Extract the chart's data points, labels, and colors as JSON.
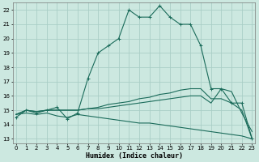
{
  "xlabel": "Humidex (Indice chaleur)",
  "background_color": "#cce8e0",
  "grid_color": "#aacec6",
  "line_color": "#1a6b5a",
  "x_ticks": [
    0,
    1,
    2,
    3,
    4,
    5,
    6,
    7,
    8,
    9,
    10,
    11,
    12,
    13,
    14,
    15,
    16,
    17,
    18,
    19,
    20,
    21,
    22,
    23
  ],
  "y_ticks": [
    13,
    14,
    15,
    16,
    17,
    18,
    19,
    20,
    21,
    22
  ],
  "xlim": [
    -0.3,
    23.3
  ],
  "ylim": [
    12.7,
    22.5
  ],
  "lines": [
    {
      "x": [
        0,
        1,
        2,
        3,
        4,
        5,
        6,
        7,
        8,
        9,
        10,
        11,
        12,
        13,
        14,
        15,
        16,
        17,
        18,
        19,
        20,
        21,
        22,
        23
      ],
      "y": [
        14.5,
        15.0,
        14.8,
        15.0,
        15.2,
        14.4,
        14.8,
        17.2,
        19.0,
        19.5,
        20.0,
        22.0,
        21.5,
        21.5,
        22.3,
        21.5,
        21.0,
        21.0,
        19.5,
        16.5,
        16.5,
        15.5,
        15.5,
        13.0
      ],
      "marker": true
    },
    {
      "x": [
        0,
        1,
        2,
        3,
        4,
        5,
        6,
        7,
        8,
        9,
        10,
        11,
        12,
        13,
        14,
        15,
        16,
        17,
        18,
        19,
        20,
        21,
        22,
        23
      ],
      "y": [
        14.7,
        15.0,
        14.9,
        15.0,
        15.0,
        15.0,
        15.0,
        15.1,
        15.2,
        15.4,
        15.5,
        15.6,
        15.8,
        15.9,
        16.1,
        16.2,
        16.4,
        16.5,
        16.5,
        15.8,
        15.8,
        15.5,
        15.0,
        13.0
      ],
      "marker": false
    },
    {
      "x": [
        0,
        1,
        2,
        3,
        4,
        5,
        6,
        7,
        8,
        9,
        10,
        11,
        12,
        13,
        14,
        15,
        16,
        17,
        18,
        19,
        20,
        21,
        22,
        23
      ],
      "y": [
        14.7,
        15.0,
        14.9,
        15.0,
        15.0,
        15.0,
        15.0,
        15.1,
        15.1,
        15.2,
        15.3,
        15.4,
        15.5,
        15.6,
        15.7,
        15.8,
        15.9,
        16.0,
        16.0,
        15.5,
        16.5,
        16.3,
        14.8,
        13.5
      ],
      "marker": false
    },
    {
      "x": [
        0,
        1,
        2,
        3,
        4,
        5,
        6,
        7,
        8,
        9,
        10,
        11,
        12,
        13,
        14,
        15,
        16,
        17,
        18,
        19,
        20,
        21,
        22,
        23
      ],
      "y": [
        14.7,
        14.8,
        14.7,
        14.8,
        14.6,
        14.5,
        14.7,
        14.6,
        14.5,
        14.4,
        14.3,
        14.2,
        14.1,
        14.1,
        14.0,
        13.9,
        13.8,
        13.7,
        13.6,
        13.5,
        13.4,
        13.3,
        13.2,
        13.0
      ],
      "marker": false
    }
  ]
}
